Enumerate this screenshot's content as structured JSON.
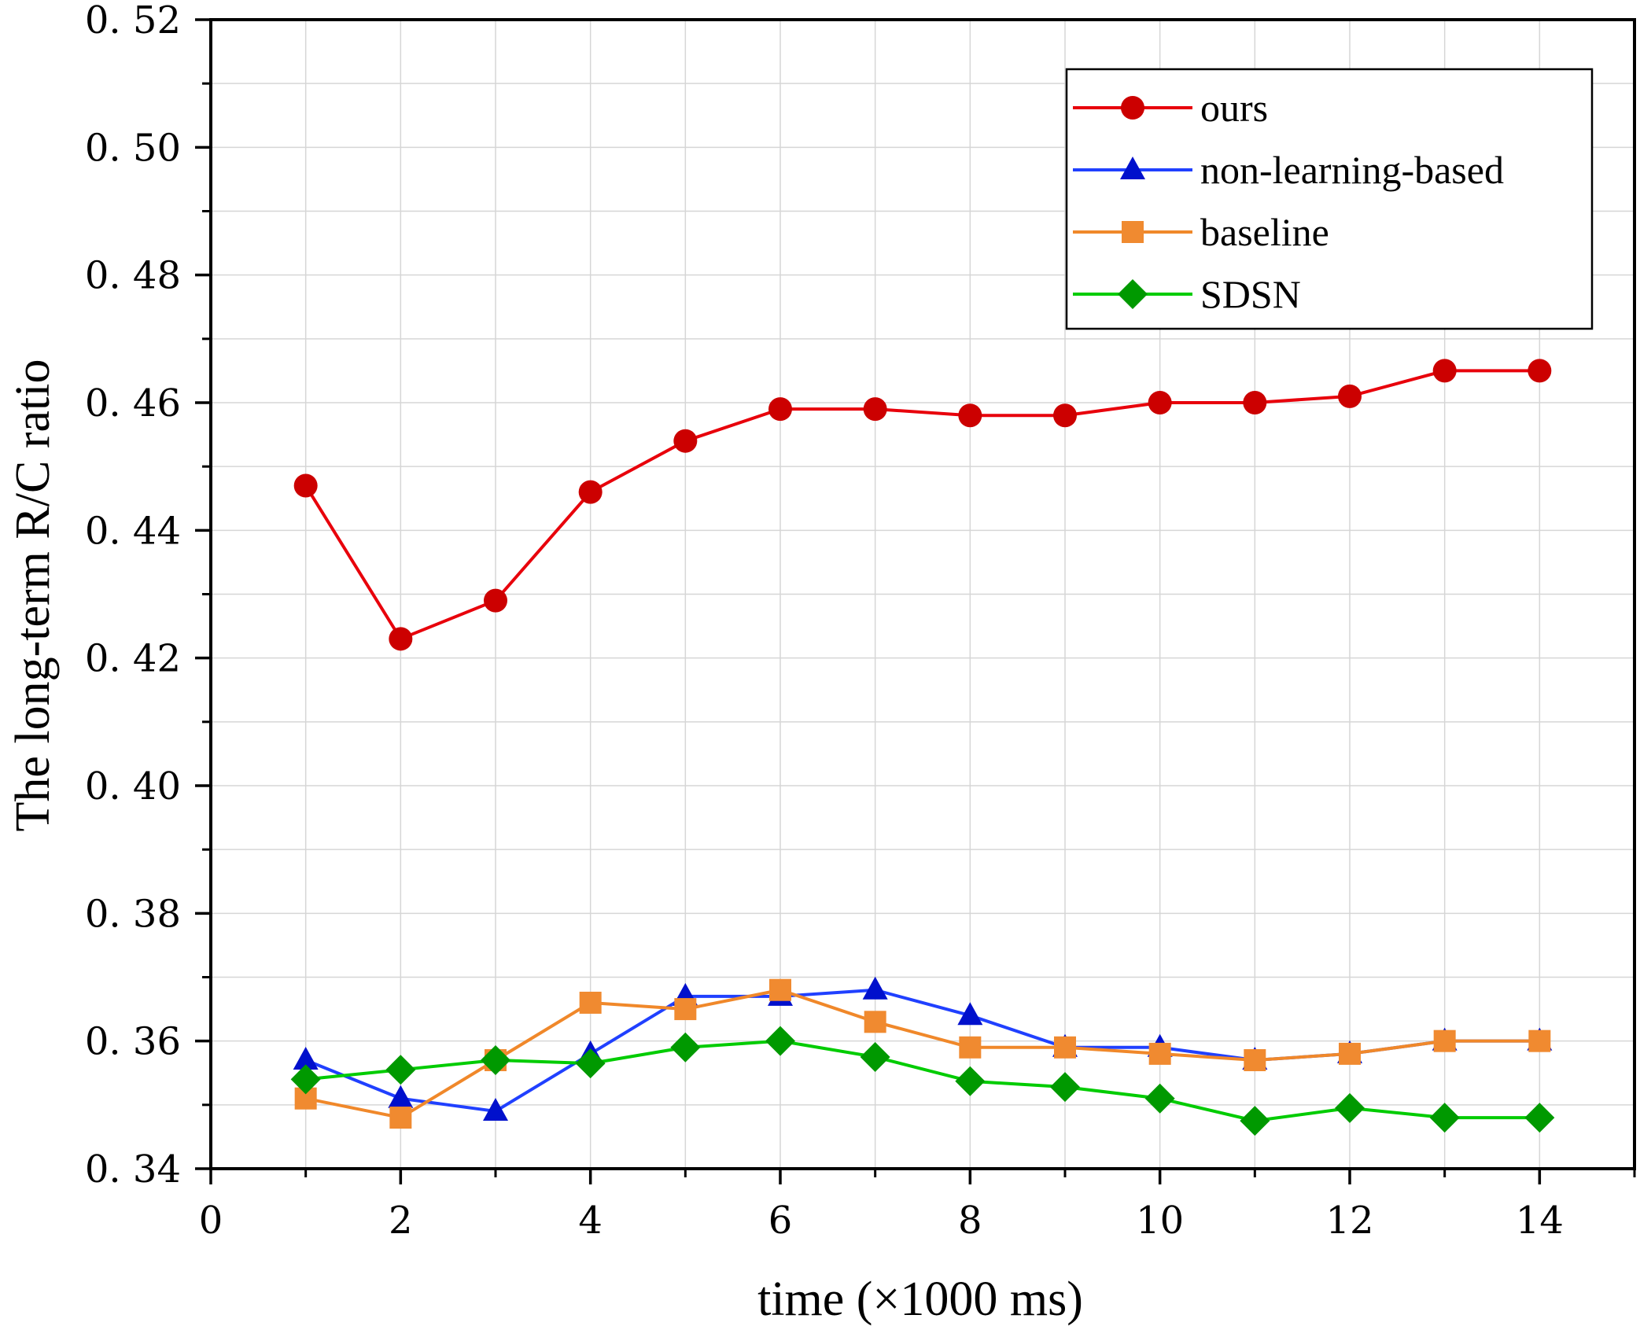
{
  "chart_data": {
    "type": "line",
    "title": "",
    "xlabel": "time (×1000 ms)",
    "ylabel": "The long-term R/C ratio",
    "xlim": [
      0,
      15
    ],
    "ylim": [
      0.34,
      0.52
    ],
    "x_ticks": [
      0,
      2,
      4,
      6,
      8,
      10,
      12,
      14
    ],
    "x_tick_labels": [
      "0",
      "2",
      "4",
      "6",
      "8",
      "10",
      "12",
      "14"
    ],
    "y_ticks": [
      0.34,
      0.36,
      0.38,
      0.4,
      0.42,
      0.44,
      0.46,
      0.48,
      0.5,
      0.52
    ],
    "y_tick_labels": [
      "0. 34",
      "0. 36",
      "0. 38",
      "0. 40",
      "0. 42",
      "0. 44",
      "0. 46",
      "0. 48",
      "0. 50",
      "0. 52"
    ],
    "grid": true,
    "legend_position": "top-right",
    "x": [
      1,
      2,
      3,
      4,
      5,
      6,
      7,
      8,
      9,
      10,
      11,
      12,
      13,
      14
    ],
    "series": [
      {
        "name": "ours",
        "color": "#e8000b",
        "marker_color": "#cc0000",
        "marker": "circle",
        "values": [
          0.447,
          0.423,
          0.429,
          0.446,
          0.454,
          0.459,
          0.459,
          0.458,
          0.458,
          0.46,
          0.46,
          0.461,
          0.465,
          0.465
        ]
      },
      {
        "name": "non-learning-based",
        "color": "#2040ff",
        "marker_color": "#0010cc",
        "marker": "triangle",
        "values": [
          0.357,
          0.351,
          0.349,
          0.358,
          0.367,
          0.367,
          0.368,
          0.364,
          0.359,
          0.359,
          0.357,
          0.358,
          0.36,
          0.36
        ]
      },
      {
        "name": "baseline",
        "color": "#f0882a",
        "marker_color": "#f08a30",
        "marker": "square",
        "values": [
          0.351,
          0.348,
          0.357,
          0.366,
          0.365,
          0.368,
          0.363,
          0.359,
          0.359,
          0.358,
          0.357,
          0.358,
          0.36,
          0.36
        ]
      },
      {
        "name": "SDSN",
        "color": "#00cc00",
        "marker_color": "#009900",
        "marker": "diamond",
        "values": [
          0.354,
          0.3555,
          0.357,
          0.3565,
          0.359,
          0.36,
          0.3575,
          0.3537,
          0.3528,
          0.351,
          0.3475,
          0.3495,
          0.348,
          0.348
        ]
      }
    ]
  }
}
